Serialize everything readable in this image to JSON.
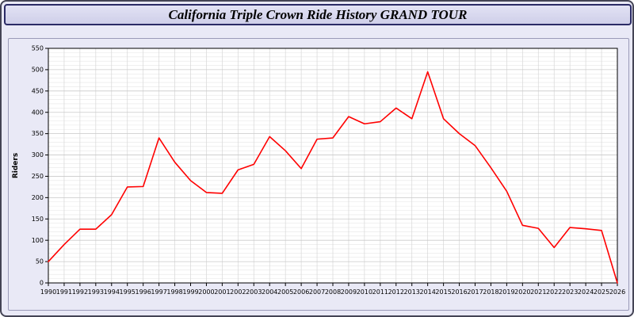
{
  "header": {
    "title": "California Triple Crown Ride History GRAND TOUR"
  },
  "chart_data": {
    "type": "line",
    "title": "California Triple Crown Ride History GRAND TOUR",
    "xlabel": "",
    "ylabel": "Riders",
    "ylim": [
      0,
      550
    ],
    "y_tick_step": 50,
    "y_minor_step": 10,
    "grid": true,
    "legend": "none",
    "line_color": "#ff0000",
    "plot_bg": "#ffffff",
    "major_grid_color": "#c9c9c9",
    "minor_grid_color": "#e6e6e6",
    "vertical_grid_color": "#d7d7d7",
    "x": [
      1990,
      1991,
      1992,
      1993,
      1994,
      1995,
      1996,
      1997,
      1998,
      1999,
      2000,
      2001,
      2002,
      2003,
      2004,
      2005,
      2006,
      2007,
      2008,
      2009,
      2010,
      2011,
      2012,
      2013,
      2014,
      2015,
      2016,
      2017,
      2018,
      2019,
      2020,
      2021,
      2022,
      2023,
      2024,
      2025,
      2026
    ],
    "values": [
      50,
      90,
      126,
      126,
      160,
      225,
      226,
      340,
      283,
      240,
      212,
      210,
      265,
      278,
      343,
      310,
      268,
      337,
      340,
      390,
      373,
      378,
      410,
      385,
      495,
      385,
      350,
      322,
      270,
      215,
      135,
      128,
      83,
      130,
      127,
      123,
      0
    ]
  }
}
